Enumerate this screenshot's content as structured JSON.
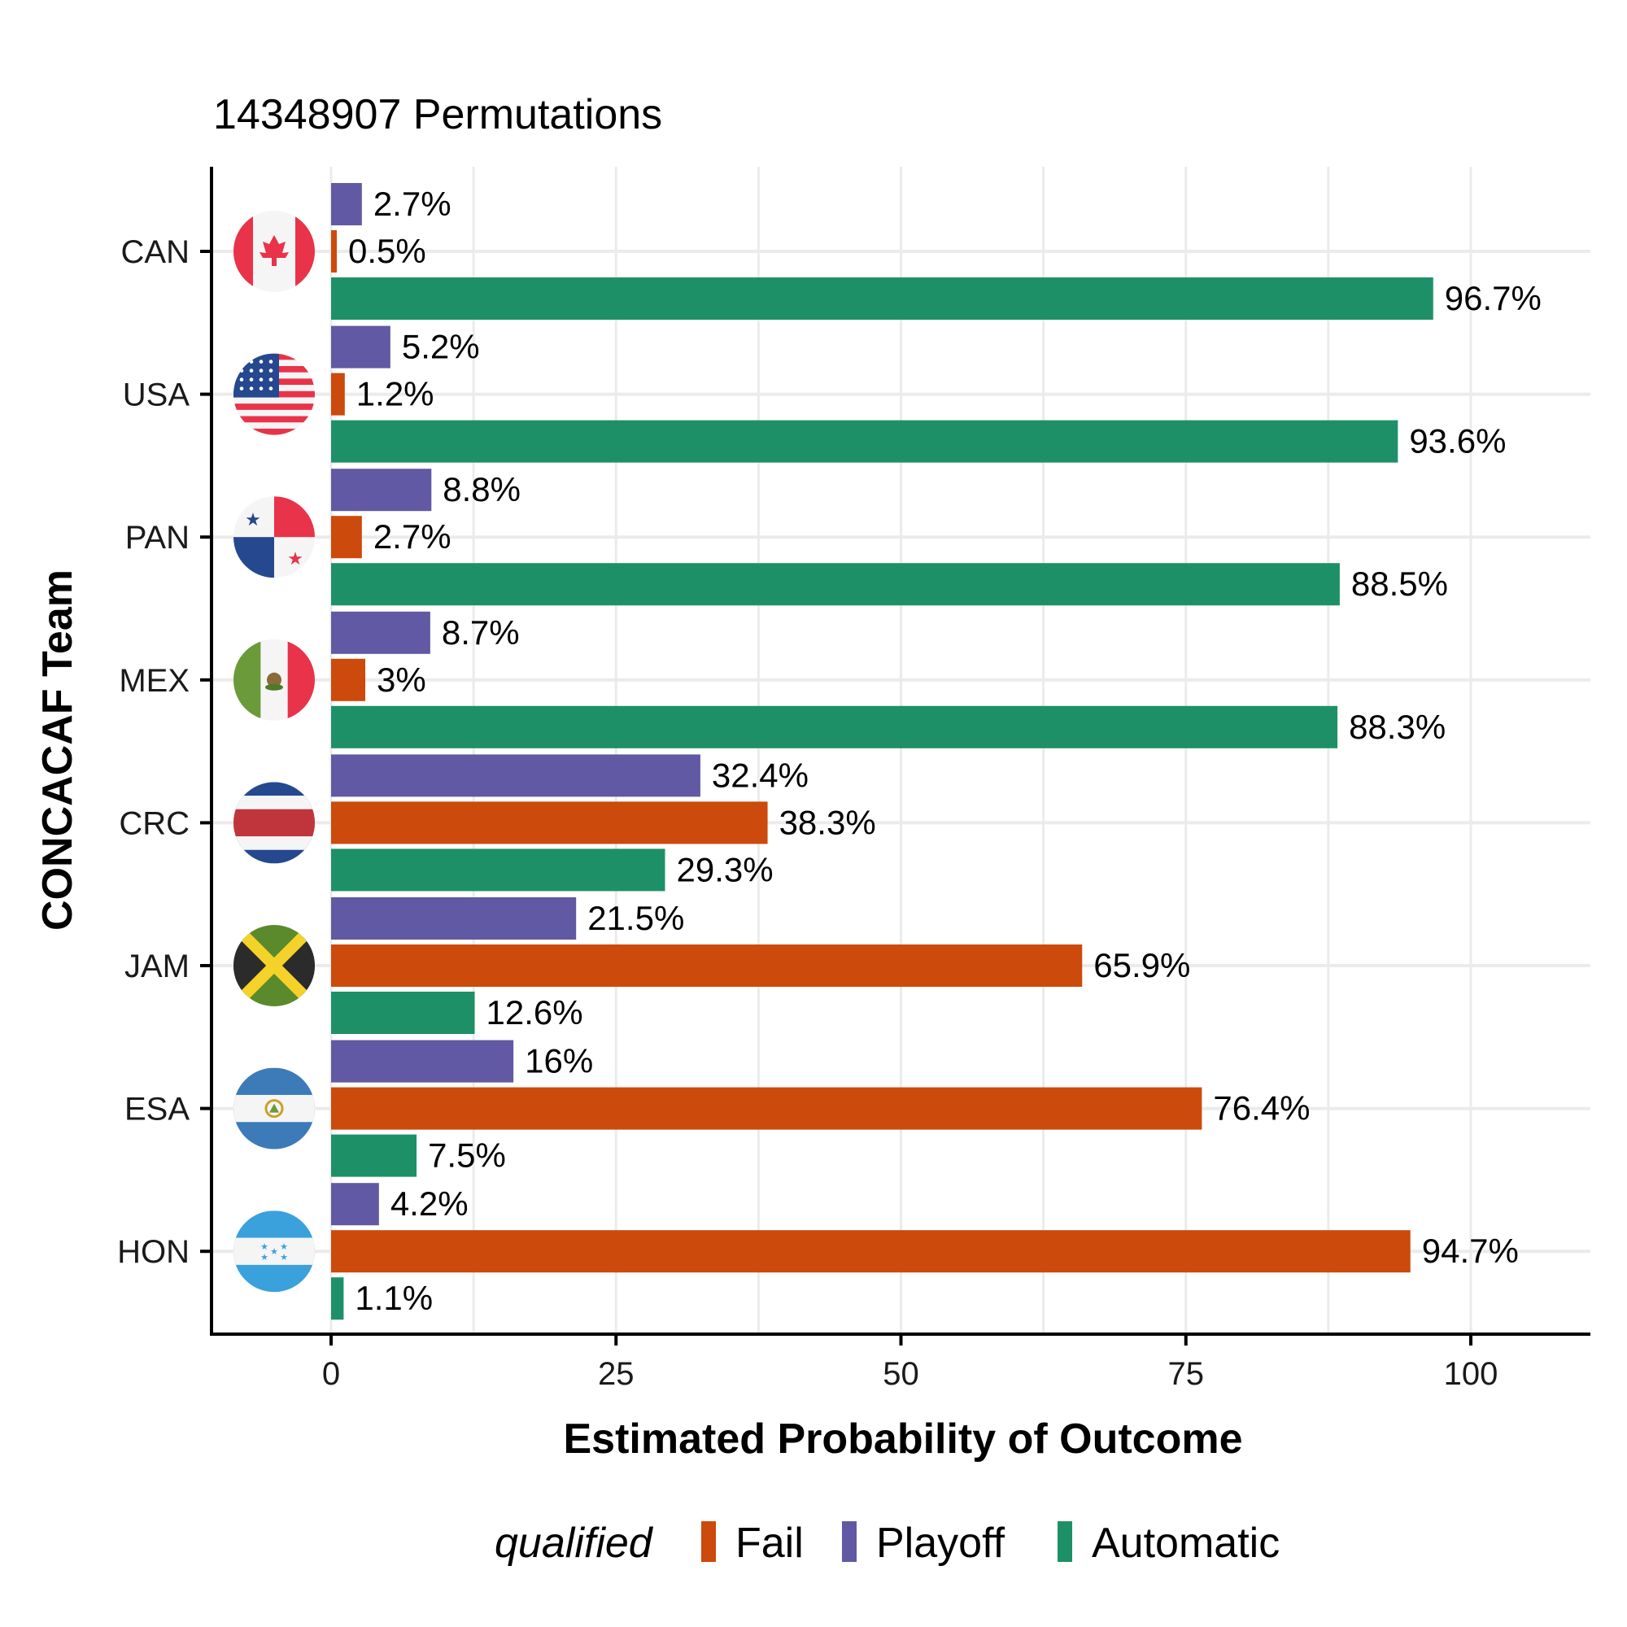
{
  "chart_data": {
    "type": "bar",
    "orientation": "horizontal",
    "title": "14348907 Permutations",
    "xlabel": "Estimated Probability of Outcome",
    "ylabel": "CONCACAF Team",
    "xlim": [
      0,
      100
    ],
    "xticks": [
      "0",
      "25",
      "50",
      "75",
      "100"
    ],
    "grid": true,
    "categories": [
      "CAN",
      "USA",
      "PAN",
      "MEX",
      "CRC",
      "JAM",
      "ESA",
      "HON"
    ],
    "flags": [
      "canada-flag-icon",
      "usa-flag-icon",
      "panama-flag-icon",
      "mexico-flag-icon",
      "costa-rica-flag-icon",
      "jamaica-flag-icon",
      "el-salvador-flag-icon",
      "honduras-flag-icon"
    ],
    "series": [
      {
        "name": "Playoff",
        "color": "#6159a3",
        "values": [
          2.7,
          5.2,
          8.8,
          8.7,
          32.4,
          21.5,
          16,
          4.2
        ],
        "labels": [
          "2.7%",
          "5.2%",
          "8.8%",
          "8.7%",
          "32.4%",
          "21.5%",
          "16%",
          "4.2%"
        ]
      },
      {
        "name": "Fail",
        "color": "#cc4a0c",
        "values": [
          0.5,
          1.2,
          2.7,
          3,
          38.3,
          65.9,
          76.4,
          94.7
        ],
        "labels": [
          "0.5%",
          "1.2%",
          "2.7%",
          "3%",
          "38.3%",
          "65.9%",
          "76.4%",
          "94.7%"
        ]
      },
      {
        "name": "Automatic",
        "color": "#1e9068",
        "values": [
          96.7,
          93.6,
          88.5,
          88.3,
          29.3,
          12.6,
          7.5,
          1.1
        ],
        "labels": [
          "96.7%",
          "93.6%",
          "88.5%",
          "88.3%",
          "29.3%",
          "12.6%",
          "7.5%",
          "1.1%"
        ]
      }
    ],
    "legend": {
      "title": "qualified",
      "position": "bottom",
      "items": [
        {
          "name": "Fail",
          "color": "#cc4a0c"
        },
        {
          "name": "Playoff",
          "color": "#6159a3"
        },
        {
          "name": "Automatic",
          "color": "#1e9068"
        }
      ]
    }
  }
}
